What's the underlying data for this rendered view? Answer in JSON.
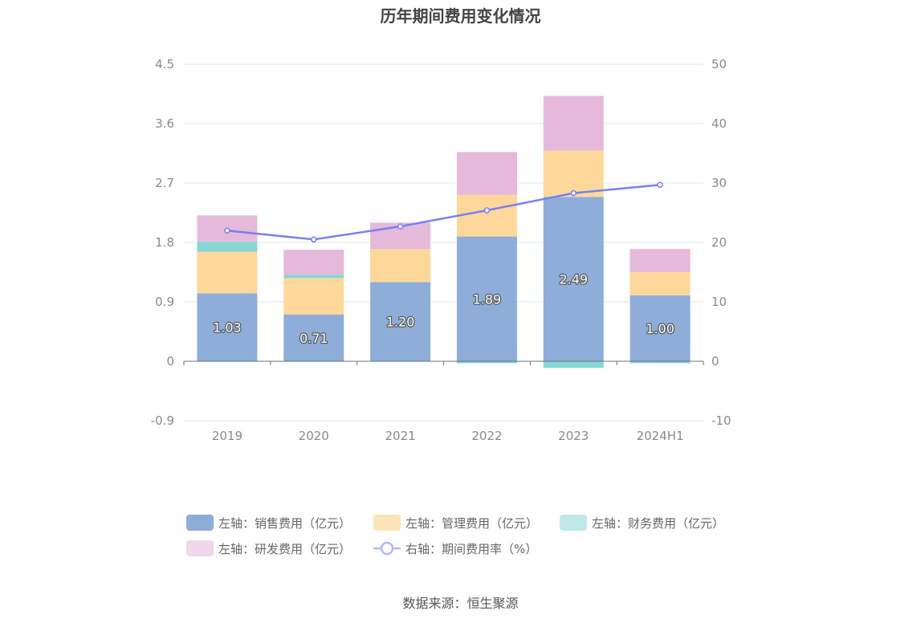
{
  "title": "历年期间费用变化情况",
  "source": "数据来源：恒生聚源",
  "chart_data": {
    "type": "bar",
    "stacked": true,
    "title": "历年期间费用变化情况",
    "categories": [
      "2019",
      "2020",
      "2021",
      "2022",
      "2023",
      "2024H1"
    ],
    "y_left": {
      "ticks": [
        "4.5",
        "3.6",
        "2.7",
        "1.8",
        "0.9",
        "0",
        "-0.9"
      ],
      "min": -0.9,
      "max": 4.5
    },
    "y_right": {
      "ticks": [
        "50",
        "40",
        "30",
        "20",
        "10",
        "0",
        "-10"
      ],
      "min": -10,
      "max": 50
    },
    "series": [
      {
        "name": "左轴：销售费用（亿元）",
        "axis": "left",
        "color": "#8eadd9",
        "values": [
          1.03,
          0.71,
          1.2,
          1.89,
          2.49,
          1.0
        ],
        "labels": [
          "1.03",
          "0.71",
          "1.20",
          "1.89",
          "2.49",
          "1.00"
        ]
      },
      {
        "name": "左轴：管理费用（亿元）",
        "axis": "left",
        "color": "#fdd89a",
        "values": [
          0.63,
          0.55,
          0.5,
          0.63,
          0.7,
          0.35
        ]
      },
      {
        "name": "左轴：财务费用（亿元）",
        "axis": "left",
        "color": "#86d6d6",
        "values": [
          0.15,
          0.05,
          0.0,
          -0.03,
          -0.1,
          -0.03
        ]
      },
      {
        "name": "左轴：研发费用（亿元）",
        "axis": "left",
        "color": "#e5b9da",
        "values": [
          0.4,
          0.38,
          0.4,
          0.65,
          0.83,
          0.35
        ]
      },
      {
        "name": "右轴：期间费用率（%）",
        "axis": "right",
        "type": "line",
        "color": "#7b7ff0",
        "values": [
          22.0,
          20.5,
          22.7,
          25.4,
          28.3,
          29.7
        ]
      }
    ],
    "legend": [
      {
        "label": "左轴：销售费用（亿元）",
        "color": "#8eadd9",
        "kind": "bar"
      },
      {
        "label": "左轴：管理费用（亿元）",
        "color": "#fde3b8",
        "kind": "bar"
      },
      {
        "label": "左轴：财务费用（亿元）",
        "color": "#c0e8ea",
        "kind": "bar"
      },
      {
        "label": "左轴：研发费用（亿元）",
        "color": "#f0d6ea",
        "kind": "bar"
      },
      {
        "label": "右轴：期间费用率（%）",
        "color": "#b4b7f5",
        "kind": "line"
      }
    ],
    "legend_position": "bottom",
    "grid": true
  }
}
